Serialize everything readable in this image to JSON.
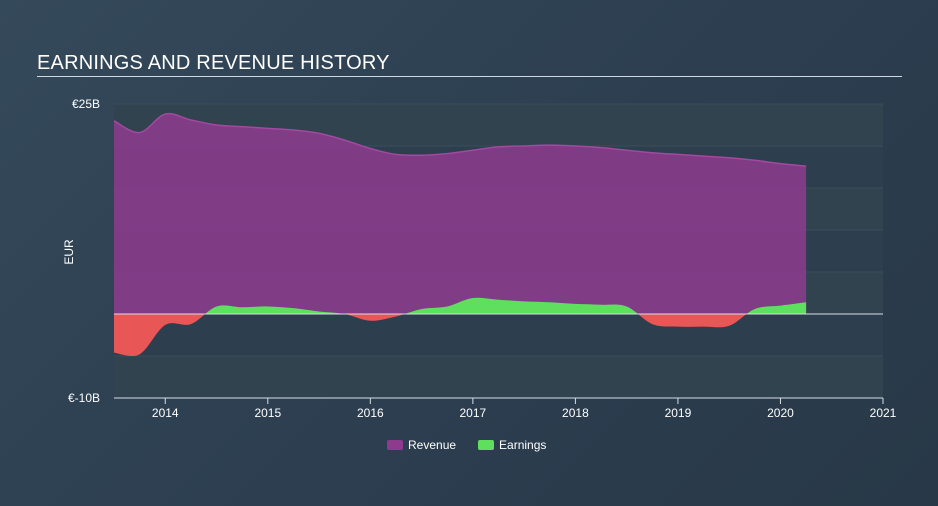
{
  "title": "EARNINGS AND REVENUE HISTORY",
  "chart_data": {
    "type": "area",
    "title": "EARNINGS AND REVENUE HISTORY",
    "xlabel": "",
    "ylabel": "EUR",
    "ylim": [
      -10,
      25
    ],
    "y_tick_labels": [
      "€25B",
      "€-10B"
    ],
    "x_ticks": [
      2014,
      2015,
      2016,
      2017,
      2018,
      2019,
      2020,
      2021
    ],
    "xlim": [
      2013.5,
      2021.0
    ],
    "grid": true,
    "legend_position": "bottom-center",
    "series": [
      {
        "name": "Revenue",
        "color": "#8e3b8e",
        "x": [
          2013.5,
          2013.75,
          2014.0,
          2014.25,
          2014.5,
          2014.75,
          2015.0,
          2015.25,
          2015.5,
          2015.75,
          2016.0,
          2016.25,
          2016.5,
          2016.75,
          2017.0,
          2017.25,
          2017.5,
          2017.75,
          2018.0,
          2018.25,
          2018.5,
          2018.75,
          2019.0,
          2019.25,
          2019.5,
          2019.75,
          2020.0,
          2020.25
        ],
        "values": [
          23.0,
          21.6,
          23.8,
          23.1,
          22.5,
          22.3,
          22.1,
          21.9,
          21.5,
          20.7,
          19.7,
          19.0,
          18.9,
          19.1,
          19.5,
          19.9,
          20.0,
          20.1,
          20.0,
          19.8,
          19.5,
          19.2,
          19.0,
          18.8,
          18.6,
          18.3,
          17.9,
          17.6
        ]
      },
      {
        "name": "Earnings",
        "color": "#5ee05e",
        "negative_color": "#e85656",
        "x": [
          2013.5,
          2013.75,
          2014.0,
          2014.25,
          2014.5,
          2014.75,
          2015.0,
          2015.25,
          2015.5,
          2015.75,
          2016.0,
          2016.25,
          2016.5,
          2016.75,
          2017.0,
          2017.25,
          2017.5,
          2017.75,
          2018.0,
          2018.25,
          2018.5,
          2018.75,
          2019.0,
          2019.25,
          2019.5,
          2019.75,
          2020.0,
          2020.25
        ],
        "values": [
          -4.6,
          -4.8,
          -1.3,
          -1.2,
          0.9,
          0.8,
          0.9,
          0.7,
          0.3,
          0.0,
          -0.8,
          -0.3,
          0.6,
          0.9,
          1.9,
          1.7,
          1.5,
          1.4,
          1.2,
          1.1,
          0.9,
          -1.2,
          -1.5,
          -1.5,
          -1.4,
          0.6,
          1.0,
          1.4
        ]
      }
    ]
  },
  "legend": {
    "revenue_label": "Revenue",
    "earnings_label": "Earnings",
    "revenue_color": "#8e3b8e",
    "earnings_color": "#5ee05e"
  }
}
